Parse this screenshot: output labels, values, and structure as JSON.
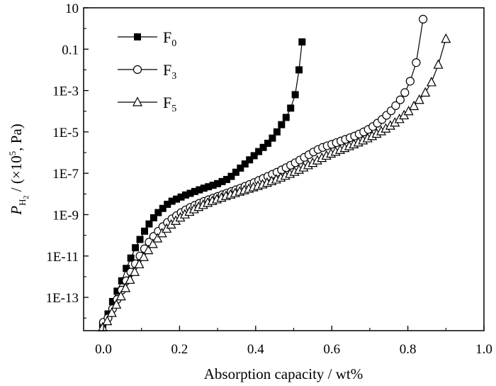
{
  "chart_data": {
    "type": "scatter",
    "xlabel": "Absorption capacity / wt%",
    "ylabel": {
      "symbol": "P",
      "subscript": "H",
      "subsubscript": "2",
      "unit_prefix": " / (×10",
      "exponent": "5",
      "unit_suffix": ", Pa)"
    },
    "xlim": [
      -0.03,
      1.0
    ],
    "ylim_log10": [
      -15,
      1
    ],
    "yscale": "log",
    "x_ticks": [
      {
        "value": 0.0,
        "label": "0.0"
      },
      {
        "value": 0.2,
        "label": "0.2"
      },
      {
        "value": 0.4,
        "label": "0.4"
      },
      {
        "value": 0.6,
        "label": "0.6"
      },
      {
        "value": 0.8,
        "label": "0.8"
      },
      {
        "value": 1.0,
        "label": "1.0"
      }
    ],
    "y_ticks": [
      {
        "log10": 1,
        "label": "10"
      },
      {
        "log10": -1,
        "label": "0.1"
      },
      {
        "log10": -3,
        "label": "1E-3"
      },
      {
        "log10": -5,
        "label": "1E-5"
      },
      {
        "log10": -7,
        "label": "1E-7"
      },
      {
        "log10": -9,
        "label": "1E-9"
      },
      {
        "log10": -11,
        "label": "1E-11"
      },
      {
        "log10": -13,
        "label": "1E-13"
      }
    ],
    "legend_position": "top-left",
    "series": [
      {
        "name": "F",
        "name_sub": "0",
        "marker": "filled-square",
        "color": "#000000",
        "points": [
          [
            -0.002,
            -14.3
          ],
          [
            0.012,
            -13.8
          ],
          [
            0.024,
            -13.2
          ],
          [
            0.036,
            -12.7
          ],
          [
            0.048,
            -12.2
          ],
          [
            0.06,
            -11.6
          ],
          [
            0.072,
            -11.1
          ],
          [
            0.084,
            -10.6
          ],
          [
            0.096,
            -10.2
          ],
          [
            0.108,
            -9.8
          ],
          [
            0.12,
            -9.45
          ],
          [
            0.132,
            -9.15
          ],
          [
            0.144,
            -8.9
          ],
          [
            0.156,
            -8.7
          ],
          [
            0.168,
            -8.5
          ],
          [
            0.18,
            -8.35
          ],
          [
            0.192,
            -8.25
          ],
          [
            0.204,
            -8.15
          ],
          [
            0.216,
            -8.05
          ],
          [
            0.228,
            -7.97
          ],
          [
            0.24,
            -7.88
          ],
          [
            0.252,
            -7.8
          ],
          [
            0.264,
            -7.72
          ],
          [
            0.276,
            -7.65
          ],
          [
            0.288,
            -7.58
          ],
          [
            0.3,
            -7.5
          ],
          [
            0.312,
            -7.4
          ],
          [
            0.324,
            -7.3
          ],
          [
            0.336,
            -7.15
          ],
          [
            0.348,
            -6.95
          ],
          [
            0.36,
            -6.75
          ],
          [
            0.372,
            -6.55
          ],
          [
            0.384,
            -6.35
          ],
          [
            0.396,
            -6.15
          ],
          [
            0.408,
            -5.95
          ],
          [
            0.42,
            -5.75
          ],
          [
            0.432,
            -5.55
          ],
          [
            0.444,
            -5.3
          ],
          [
            0.456,
            -5.0
          ],
          [
            0.468,
            -4.65
          ],
          [
            0.48,
            -4.3
          ],
          [
            0.492,
            -3.85
          ],
          [
            0.504,
            -3.2
          ],
          [
            0.514,
            -2.0
          ],
          [
            0.522,
            -0.65
          ]
        ]
      },
      {
        "name": "F",
        "name_sub": "3",
        "marker": "open-circle",
        "color": "#000000",
        "points": [
          [
            0.0,
            -14.2
          ],
          [
            0.012,
            -14.0
          ],
          [
            0.024,
            -13.55
          ],
          [
            0.036,
            -13.1
          ],
          [
            0.048,
            -12.65
          ],
          [
            0.06,
            -12.2
          ],
          [
            0.072,
            -11.78
          ],
          [
            0.084,
            -11.38
          ],
          [
            0.096,
            -11.0
          ],
          [
            0.108,
            -10.65
          ],
          [
            0.12,
            -10.33
          ],
          [
            0.132,
            -10.05
          ],
          [
            0.144,
            -9.8
          ],
          [
            0.156,
            -9.58
          ],
          [
            0.168,
            -9.38
          ],
          [
            0.18,
            -9.2
          ],
          [
            0.192,
            -9.05
          ],
          [
            0.204,
            -8.9
          ],
          [
            0.216,
            -8.77
          ],
          [
            0.228,
            -8.65
          ],
          [
            0.24,
            -8.55
          ],
          [
            0.252,
            -8.45
          ],
          [
            0.264,
            -8.36
          ],
          [
            0.276,
            -8.28
          ],
          [
            0.288,
            -8.2
          ],
          [
            0.3,
            -8.12
          ],
          [
            0.312,
            -8.04
          ],
          [
            0.324,
            -7.96
          ],
          [
            0.336,
            -7.88
          ],
          [
            0.348,
            -7.8
          ],
          [
            0.36,
            -7.72
          ],
          [
            0.372,
            -7.63
          ],
          [
            0.384,
            -7.54
          ],
          [
            0.396,
            -7.45
          ],
          [
            0.408,
            -7.35
          ],
          [
            0.42,
            -7.25
          ],
          [
            0.432,
            -7.15
          ],
          [
            0.444,
            -7.05
          ],
          [
            0.456,
            -6.95
          ],
          [
            0.468,
            -6.84
          ],
          [
            0.48,
            -6.73
          ],
          [
            0.492,
            -6.61
          ],
          [
            0.504,
            -6.49
          ],
          [
            0.516,
            -6.36
          ],
          [
            0.528,
            -6.23
          ],
          [
            0.54,
            -6.1
          ],
          [
            0.552,
            -5.97
          ],
          [
            0.564,
            -5.85
          ],
          [
            0.576,
            -5.75
          ],
          [
            0.588,
            -5.67
          ],
          [
            0.6,
            -5.6
          ],
          [
            0.612,
            -5.52
          ],
          [
            0.624,
            -5.44
          ],
          [
            0.636,
            -5.36
          ],
          [
            0.648,
            -5.28
          ],
          [
            0.66,
            -5.2
          ],
          [
            0.672,
            -5.1
          ],
          [
            0.684,
            -5.0
          ],
          [
            0.696,
            -4.88
          ],
          [
            0.708,
            -4.74
          ],
          [
            0.72,
            -4.58
          ],
          [
            0.732,
            -4.4
          ],
          [
            0.744,
            -4.2
          ],
          [
            0.756,
            -3.98
          ],
          [
            0.768,
            -3.73
          ],
          [
            0.78,
            -3.45
          ],
          [
            0.792,
            -3.1
          ],
          [
            0.806,
            -2.55
          ],
          [
            0.822,
            -1.65
          ],
          [
            0.84,
            0.45
          ]
        ]
      },
      {
        "name": "F",
        "name_sub": "5",
        "marker": "open-triangle",
        "color": "#000000",
        "points": [
          [
            -0.002,
            -14.45
          ],
          [
            0.01,
            -14.15
          ],
          [
            0.022,
            -13.75
          ],
          [
            0.034,
            -13.35
          ],
          [
            0.046,
            -12.95
          ],
          [
            0.058,
            -12.55
          ],
          [
            0.07,
            -12.15
          ],
          [
            0.082,
            -11.77
          ],
          [
            0.094,
            -11.4
          ],
          [
            0.106,
            -11.05
          ],
          [
            0.118,
            -10.72
          ],
          [
            0.13,
            -10.42
          ],
          [
            0.142,
            -10.15
          ],
          [
            0.154,
            -9.9
          ],
          [
            0.166,
            -9.68
          ],
          [
            0.178,
            -9.48
          ],
          [
            0.19,
            -9.3
          ],
          [
            0.202,
            -9.14
          ],
          [
            0.214,
            -8.99
          ],
          [
            0.226,
            -8.86
          ],
          [
            0.238,
            -8.74
          ],
          [
            0.25,
            -8.63
          ],
          [
            0.262,
            -8.53
          ],
          [
            0.274,
            -8.43
          ],
          [
            0.286,
            -8.34
          ],
          [
            0.298,
            -8.26
          ],
          [
            0.31,
            -8.18
          ],
          [
            0.322,
            -8.1
          ],
          [
            0.334,
            -8.03
          ],
          [
            0.346,
            -7.96
          ],
          [
            0.358,
            -7.89
          ],
          [
            0.37,
            -7.82
          ],
          [
            0.382,
            -7.75
          ],
          [
            0.394,
            -7.68
          ],
          [
            0.406,
            -7.61
          ],
          [
            0.418,
            -7.54
          ],
          [
            0.43,
            -7.46
          ],
          [
            0.442,
            -7.38
          ],
          [
            0.454,
            -7.3
          ],
          [
            0.466,
            -7.21
          ],
          [
            0.478,
            -7.12
          ],
          [
            0.49,
            -7.03
          ],
          [
            0.502,
            -6.93
          ],
          [
            0.514,
            -6.83
          ],
          [
            0.526,
            -6.72
          ],
          [
            0.538,
            -6.61
          ],
          [
            0.55,
            -6.5
          ],
          [
            0.562,
            -6.38
          ],
          [
            0.574,
            -6.26
          ],
          [
            0.586,
            -6.15
          ],
          [
            0.598,
            -6.05
          ],
          [
            0.61,
            -5.96
          ],
          [
            0.622,
            -5.87
          ],
          [
            0.634,
            -5.78
          ],
          [
            0.646,
            -5.69
          ],
          [
            0.658,
            -5.6
          ],
          [
            0.67,
            -5.51
          ],
          [
            0.682,
            -5.41
          ],
          [
            0.694,
            -5.31
          ],
          [
            0.706,
            -5.2
          ],
          [
            0.718,
            -5.09
          ],
          [
            0.73,
            -4.97
          ],
          [
            0.742,
            -4.84
          ],
          [
            0.754,
            -4.7
          ],
          [
            0.766,
            -4.55
          ],
          [
            0.778,
            -4.38
          ],
          [
            0.79,
            -4.2
          ],
          [
            0.802,
            -4.0
          ],
          [
            0.816,
            -3.75
          ],
          [
            0.83,
            -3.45
          ],
          [
            0.846,
            -3.1
          ],
          [
            0.862,
            -2.6
          ],
          [
            0.88,
            -1.75
          ],
          [
            0.9,
            -0.5
          ]
        ]
      }
    ]
  }
}
